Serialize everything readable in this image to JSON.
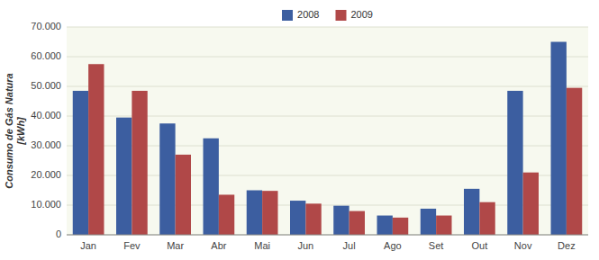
{
  "chart_data": {
    "type": "bar",
    "ylabel": "Consumo de Gás Natura\n[kWh]",
    "categories": [
      "Jan",
      "Fev",
      "Mar",
      "Abr",
      "Mai",
      "Jun",
      "Jul",
      "Ago",
      "Set",
      "Out",
      "Nov",
      "Dez"
    ],
    "series": [
      {
        "name": "2008",
        "color": "#3c5ea0",
        "values": [
          48500,
          39500,
          37500,
          32500,
          15000,
          11500,
          9800,
          6500,
          8800,
          15500,
          48500,
          65000
        ]
      },
      {
        "name": "2009",
        "color": "#b04848",
        "values": [
          57500,
          48500,
          27000,
          13500,
          14800,
          10500,
          8000,
          5800,
          6500,
          11000,
          21000,
          49500
        ]
      }
    ],
    "ylim": [
      0,
      70000
    ],
    "yticks": [
      0,
      {
        "value": 10000,
        "label": "10.000"
      },
      {
        "value": 20000,
        "label": "20.000"
      },
      {
        "value": 30000,
        "label": "30.000"
      },
      {
        "value": 40000,
        "label": "40.000"
      },
      {
        "value": 50000,
        "label": "50.000"
      },
      {
        "value": 60000,
        "label": "60.000"
      },
      {
        "value": 70000,
        "label": "70.000"
      }
    ],
    "grid": true,
    "legend": "top"
  }
}
